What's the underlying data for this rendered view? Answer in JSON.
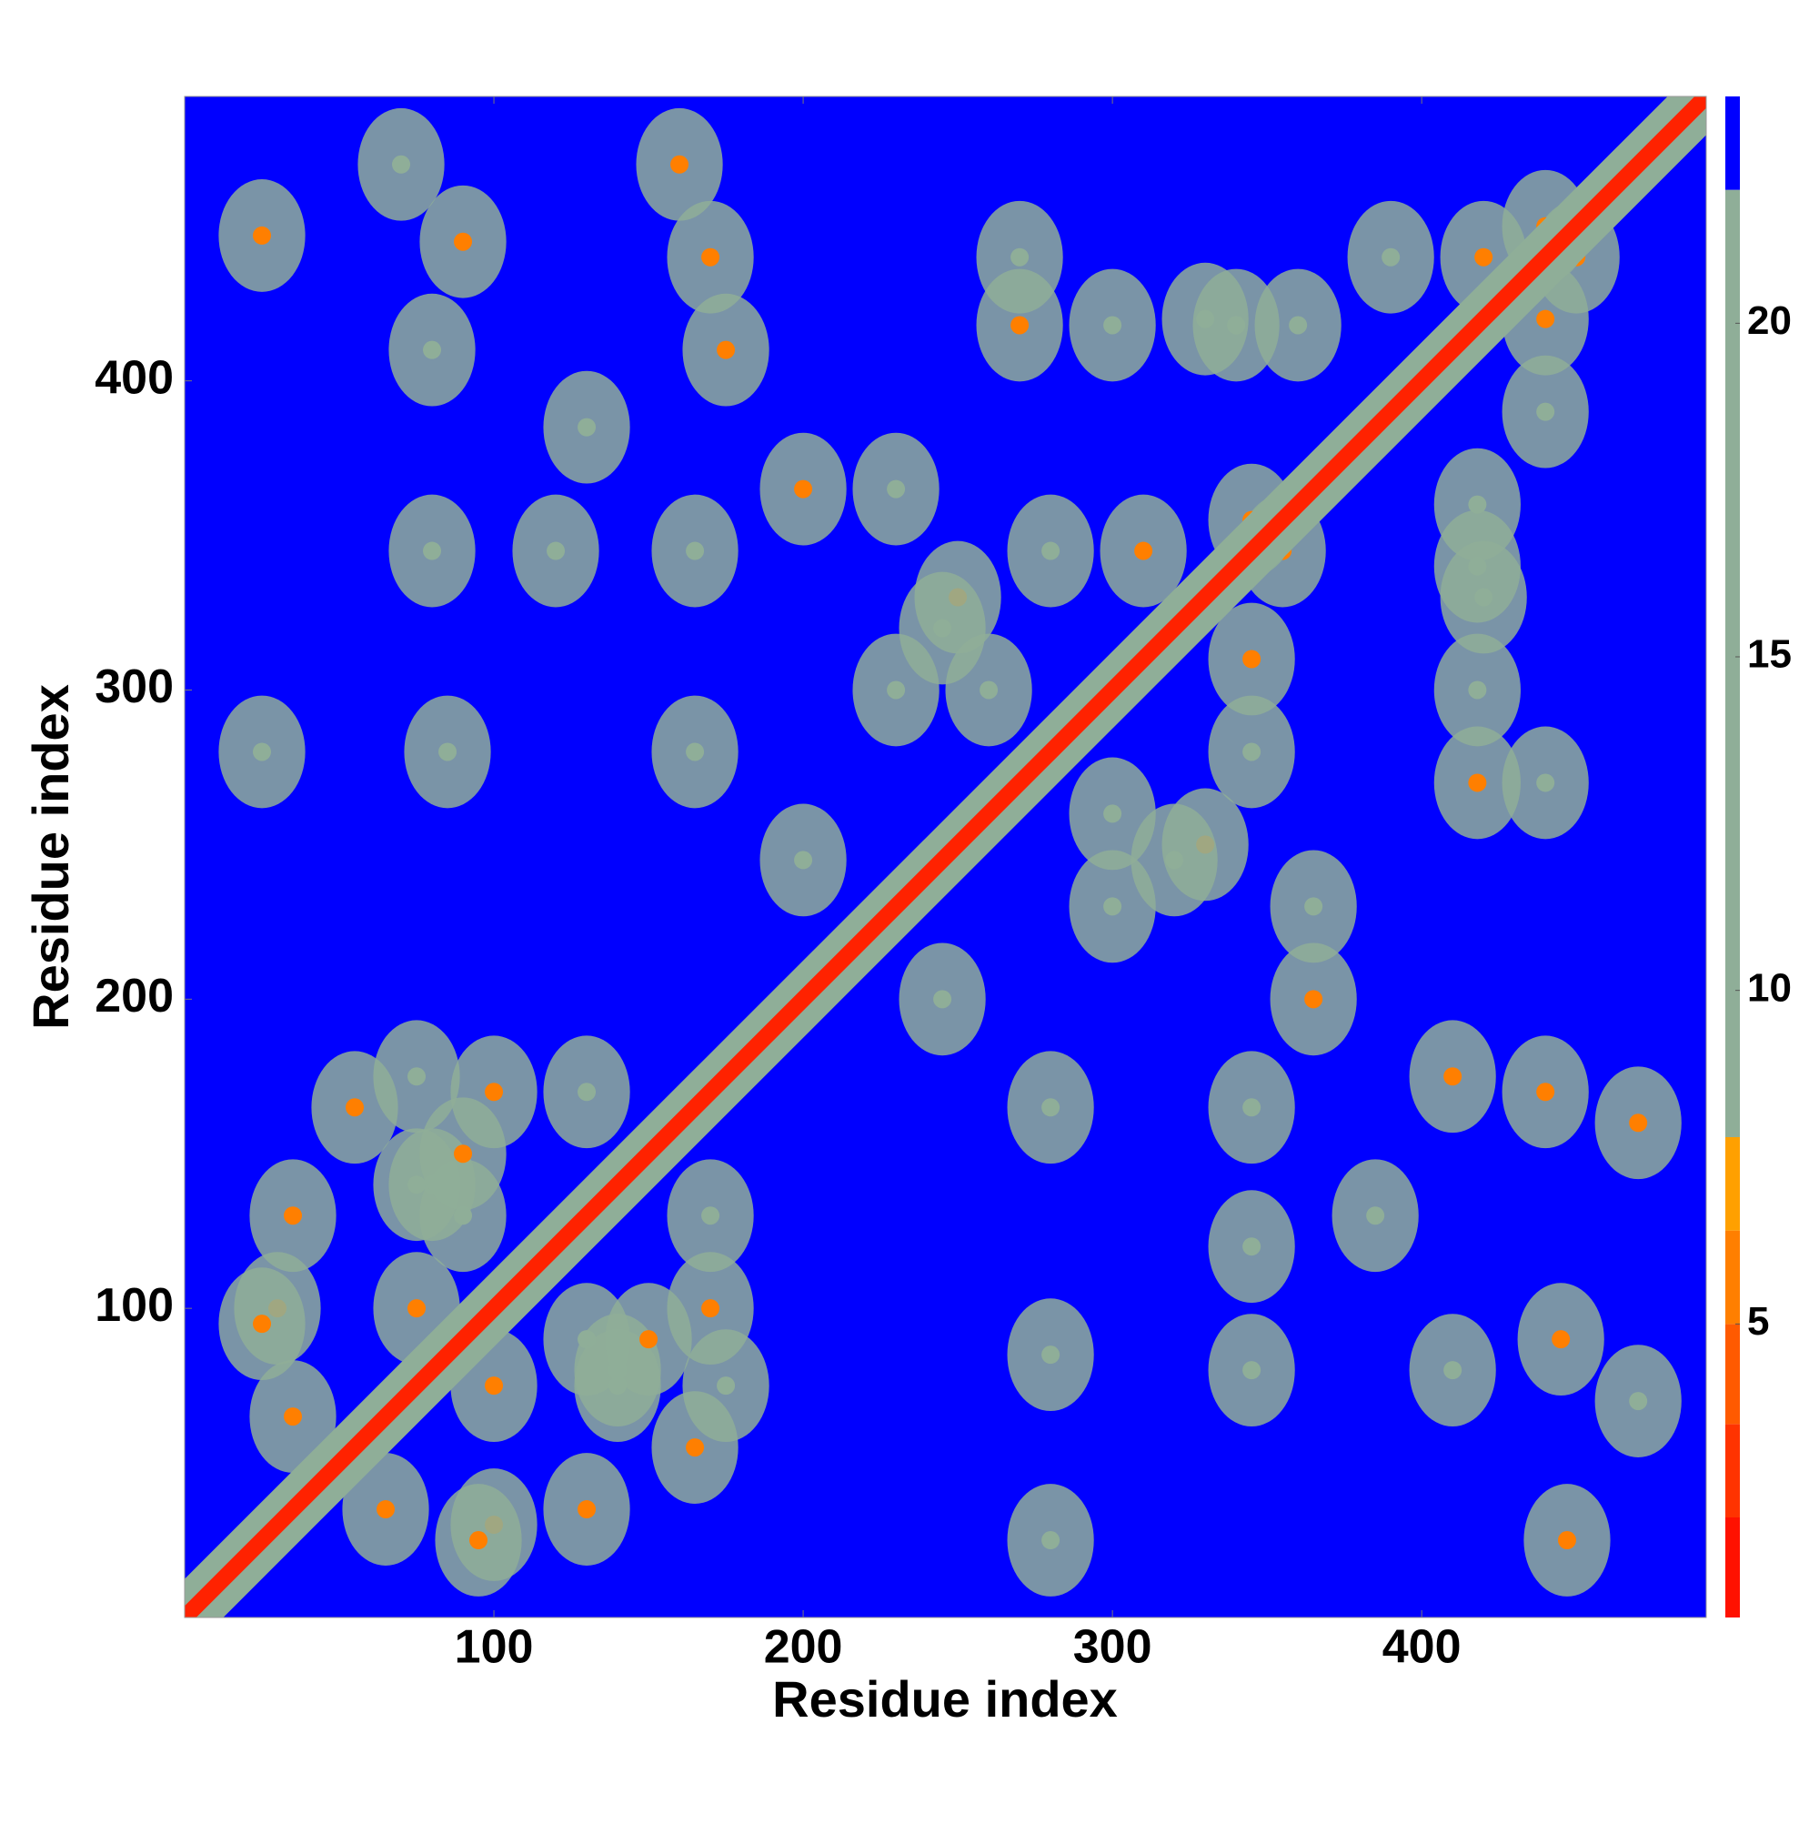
{
  "chart_data": {
    "type": "contact-map",
    "xlabel": "Residue index",
    "ylabel": "Residue index",
    "xlim": [
      0,
      492
    ],
    "ylim": [
      0,
      492
    ],
    "xticks": [
      100,
      200,
      300,
      400
    ],
    "yticks": [
      100,
      200,
      300,
      400
    ],
    "contacts": {
      "x": [
        25,
        70,
        90,
        80,
        160,
        170,
        175,
        130,
        80,
        120,
        165,
        85,
        25,
        165,
        200,
        230,
        270,
        270,
        300,
        340,
        360,
        250,
        230,
        260,
        280,
        355,
        420,
        450,
        35,
        30,
        55,
        75,
        100,
        90,
        35,
        75,
        80,
        130,
        25,
        140,
        150,
        200,
        310,
        320,
        330,
        390
      ],
      "y": [
        447,
        470,
        445,
        410,
        470,
        440,
        410,
        385,
        345,
        345,
        345,
        280,
        280,
        280,
        365,
        365,
        440,
        418,
        418,
        418,
        418,
        330,
        300,
        300,
        345,
        345,
        440,
        440,
        130,
        100,
        165,
        175,
        170,
        130,
        65,
        100,
        140,
        170,
        95,
        75,
        90,
        245,
        345,
        245,
        420,
        440
      ],
      "values": [
        6,
        10,
        6,
        10,
        6,
        6,
        6,
        10,
        10,
        10,
        10,
        10,
        10,
        10,
        6,
        10,
        10,
        6,
        10,
        10,
        10,
        6,
        10,
        10,
        10,
        6,
        6,
        6,
        6,
        6,
        6,
        10,
        6,
        10,
        6,
        6,
        10,
        10,
        6,
        10,
        6,
        10,
        6,
        10,
        10,
        10
      ]
    },
    "diagonal": {
      "color": "#ff2200",
      "x": [
        0,
        35,
        70,
        105,
        140,
        175,
        210,
        245,
        280,
        315,
        350,
        385,
        420,
        455,
        492
      ],
      "y": [
        0,
        35,
        70,
        105,
        140,
        175,
        210,
        245,
        280,
        315,
        350,
        385,
        420,
        455,
        492
      ]
    },
    "colorbar": {
      "clim": [
        0.6,
        23.4
      ],
      "ticks": [
        5,
        10,
        15,
        20
      ],
      "bounds": [
        0.6,
        2.1,
        3.5,
        5,
        6.4,
        7.8,
        22,
        23.4
      ],
      "colors": [
        "#ff1100",
        "#ff3300",
        "#ff5a00",
        "#ff7f00",
        "#ffa000",
        "#8fae98",
        "#0000ff"
      ]
    }
  }
}
